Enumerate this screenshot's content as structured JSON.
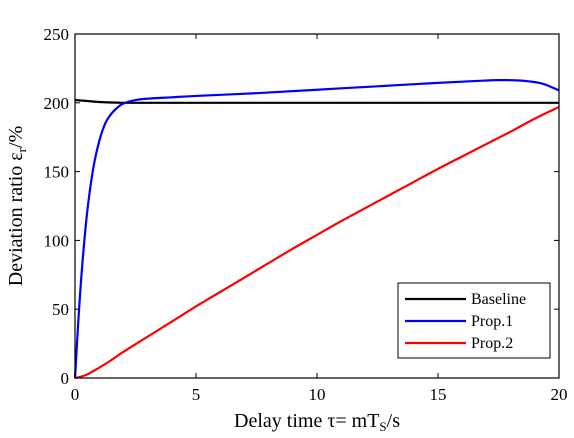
{
  "chart_data": {
    "type": "line",
    "title": "",
    "xlabel": "Delay time τ= mT",
    "xlabel_sub": "S",
    "xlabel_unit": "/s",
    "ylabel": "Deviation ratio ε",
    "ylabel_sub": "r",
    "ylabel_unit": "/%",
    "xlim": [
      0,
      20
    ],
    "ylim": [
      0,
      250
    ],
    "xticks": [
      0,
      5,
      10,
      15,
      20
    ],
    "yticks": [
      0,
      50,
      100,
      150,
      200,
      250
    ],
    "grid": false,
    "legend_position": "bottom-right",
    "series": [
      {
        "name": "Baseline",
        "color": "#000000",
        "x": [
          0,
          0.5,
          1,
          1.5,
          2,
          2.5,
          3,
          4,
          5,
          7.5,
          10,
          12.5,
          15,
          17.5,
          20
        ],
        "y": [
          202,
          201.3,
          200.6,
          200.2,
          200,
          200,
          200,
          200,
          200,
          200,
          200,
          200,
          200,
          200,
          200
        ]
      },
      {
        "name": "Prop.1",
        "color": "#0000ff",
        "x": [
          0,
          0.15,
          0.3,
          0.5,
          0.75,
          1,
          1.25,
          1.5,
          1.75,
          2,
          2.5,
          3,
          4,
          5,
          7.5,
          10,
          12.5,
          15,
          16.5,
          17.5,
          18.5,
          19.3,
          20
        ],
        "y": [
          0,
          45,
          82,
          120,
          152,
          172,
          185,
          192,
          196.5,
          199.5,
          202,
          203,
          204,
          205,
          207,
          209.5,
          212,
          214.5,
          215.8,
          216.5,
          216,
          214,
          209
        ]
      },
      {
        "name": "Prop.2",
        "color": "#ff0000",
        "x": [
          0,
          0.25,
          0.5,
          0.75,
          1,
          1.5,
          2,
          3,
          4,
          5,
          6,
          7,
          8,
          9,
          10,
          11,
          12,
          13,
          14,
          15,
          16,
          17,
          18,
          19,
          20
        ],
        "y": [
          0,
          1,
          2.5,
          5,
          7.5,
          13,
          19,
          30,
          41,
          52,
          62.5,
          73,
          83.5,
          94,
          104,
          114,
          123.5,
          133,
          142.5,
          152,
          161,
          170,
          179,
          188.5,
          197
        ]
      }
    ]
  }
}
